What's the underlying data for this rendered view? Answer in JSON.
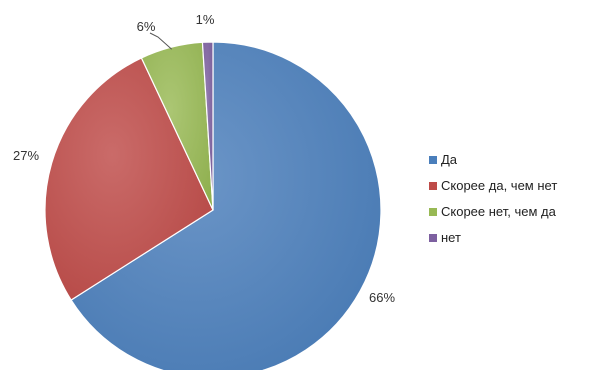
{
  "chart_data": {
    "type": "pie",
    "title": "",
    "categories": [
      "Да",
      "Скорее да, чем нет",
      "Скорее нет, чем да",
      "нет"
    ],
    "values": [
      66,
      27,
      6,
      1
    ],
    "data_labels": [
      "66%",
      "27%",
      "6%",
      "1%"
    ],
    "colors": [
      "#4a7ebb",
      "#be4b48",
      "#98b954",
      "#7d60a0"
    ],
    "legend_position": "right",
    "start_angle_deg": 0,
    "direction": "clockwise"
  }
}
